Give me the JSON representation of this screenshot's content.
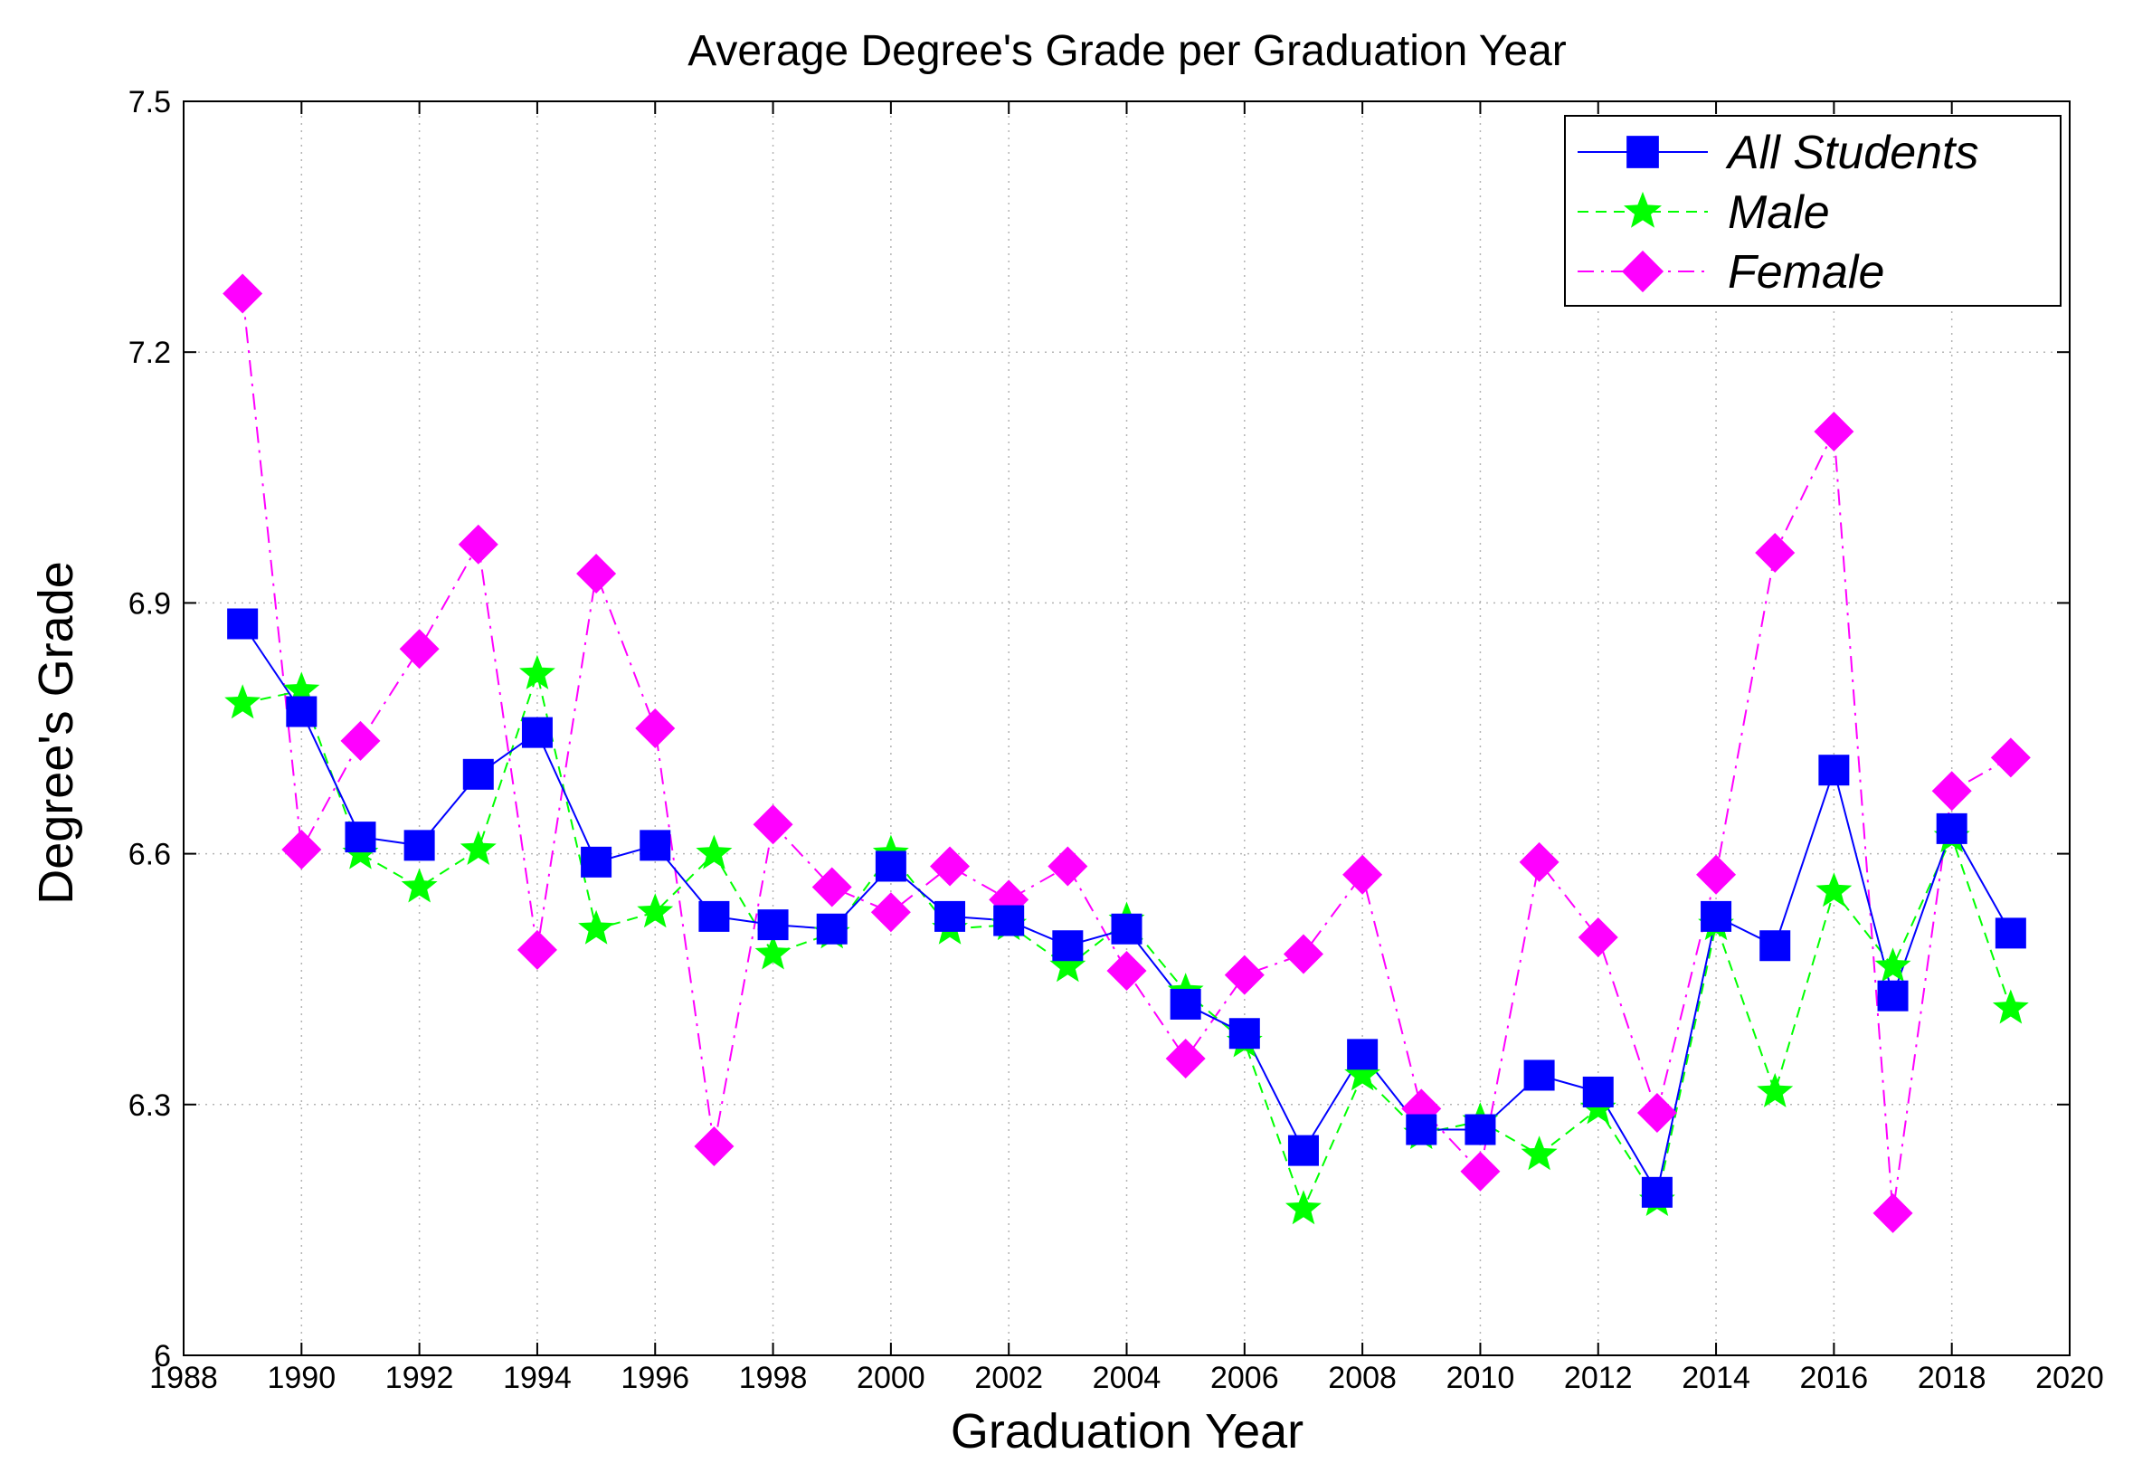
{
  "chart_data": {
    "type": "line",
    "title": "Average Degree's Grade per Graduation Year",
    "xlabel": "Graduation Year",
    "ylabel": "Degree's Grade",
    "xlim": [
      1988,
      2020
    ],
    "ylim": [
      6,
      7.5
    ],
    "xticks": [
      1988,
      1990,
      1992,
      1994,
      1996,
      1998,
      2000,
      2002,
      2004,
      2006,
      2008,
      2010,
      2012,
      2014,
      2016,
      2018,
      2020
    ],
    "xtick_labels": [
      "1988",
      "1990",
      "1992",
      "1994",
      "1996",
      "1998",
      "2000",
      "2002",
      "2004",
      "2006",
      "2008",
      "2010",
      "2012",
      "2014",
      "2016",
      "2018",
      "2020"
    ],
    "yticks": [
      6,
      6.3,
      6.6,
      6.9,
      7.2,
      7.5
    ],
    "ytick_labels": [
      "6",
      "6.3",
      "6.6",
      "6.9",
      "7.2",
      "7.5"
    ],
    "grid": true,
    "legend_position": "top-right",
    "x": [
      1989,
      1990,
      1991,
      1992,
      1993,
      1994,
      1995,
      1996,
      1997,
      1998,
      1999,
      2000,
      2001,
      2002,
      2003,
      2004,
      2005,
      2006,
      2007,
      2008,
      2009,
      2010,
      2011,
      2012,
      2013,
      2014,
      2015,
      2016,
      2017,
      2018,
      2019
    ],
    "series": [
      {
        "name": "All Students",
        "color": "#0000ff",
        "marker": "square",
        "line_style": "solid",
        "values": [
          6.875,
          6.77,
          6.62,
          6.61,
          6.695,
          6.745,
          6.59,
          6.61,
          6.525,
          6.515,
          6.51,
          6.585,
          6.525,
          6.52,
          6.49,
          6.51,
          6.42,
          6.385,
          6.245,
          6.36,
          6.27,
          6.27,
          6.335,
          6.315,
          6.195,
          6.525,
          6.49,
          6.7,
          6.43,
          6.63,
          6.505
        ]
      },
      {
        "name": "Male",
        "color": "#00ff00",
        "marker": "star",
        "line_style": "dashed",
        "values": [
          6.78,
          6.795,
          6.6,
          6.56,
          6.605,
          6.815,
          6.51,
          6.53,
          6.6,
          6.48,
          6.505,
          6.6,
          6.51,
          6.515,
          6.465,
          6.52,
          6.435,
          6.375,
          6.175,
          6.335,
          6.265,
          6.28,
          6.24,
          6.295,
          6.185,
          6.515,
          6.315,
          6.555,
          6.465,
          6.62,
          6.415
        ]
      },
      {
        "name": "Female",
        "color": "#ff00ff",
        "marker": "diamond",
        "line_style": "dash-dot",
        "values": [
          7.27,
          6.605,
          6.735,
          6.845,
          6.97,
          6.485,
          6.935,
          6.75,
          6.25,
          6.635,
          6.56,
          6.53,
          6.585,
          6.545,
          6.585,
          6.46,
          6.355,
          6.455,
          6.48,
          6.575,
          6.295,
          6.22,
          6.59,
          6.5,
          6.29,
          6.575,
          6.96,
          7.105,
          6.17,
          6.675,
          6.715
        ]
      }
    ]
  }
}
